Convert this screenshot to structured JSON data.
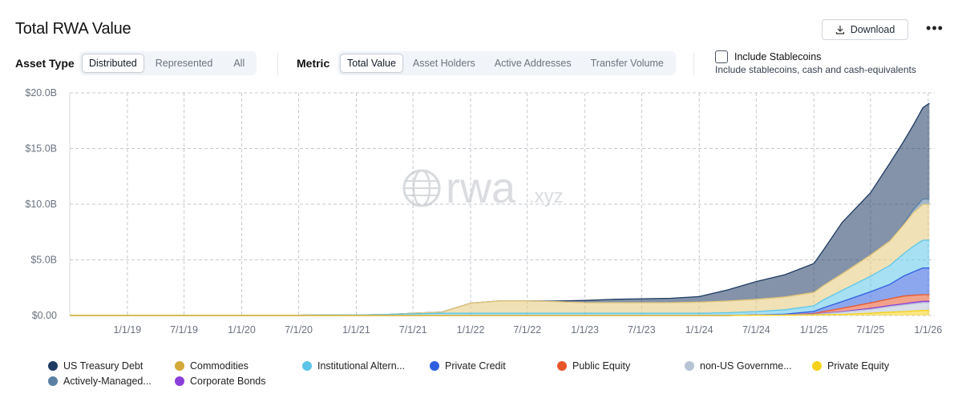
{
  "header": {
    "title": "Total RWA Value",
    "download_label": "Download",
    "more_label": "•••"
  },
  "controls": {
    "asset_type_label": "Asset Type",
    "asset_type_options": [
      "Distributed",
      "Represented",
      "All"
    ],
    "asset_type_selected": "Distributed",
    "metric_label": "Metric",
    "metric_options": [
      "Total Value",
      "Asset Holders",
      "Active Addresses",
      "Transfer Volume"
    ],
    "metric_selected": "Total Value",
    "stablecoins_label": "Include Stablecoins",
    "stablecoins_desc": "Include stablecoins, cash and cash-equivalents",
    "stablecoins_checked": false
  },
  "watermark": {
    "text": "rwa",
    "suffix": ".xyz"
  },
  "chart_data": {
    "type": "area",
    "stacked": true,
    "x_ticks": [
      "1/1/19",
      "7/1/19",
      "1/1/20",
      "7/1/20",
      "1/1/21",
      "7/1/21",
      "1/1/22",
      "7/1/22",
      "1/1/23",
      "7/1/23",
      "1/1/24",
      "7/1/24",
      "1/1/25",
      "7/1/25",
      "1/1/26"
    ],
    "y_ticks": [
      "$0.00",
      "$5.0B",
      "$10.0B",
      "$15.0B",
      "$20.0B"
    ],
    "ylim": [
      0,
      20
    ],
    "y_unit": "$B",
    "grid": true,
    "legend_position": "bottom",
    "x": [
      "2018-07-01",
      "2019-01-01",
      "2019-07-01",
      "2020-01-01",
      "2020-07-01",
      "2021-01-01",
      "2021-04-01",
      "2021-07-01",
      "2021-10-01",
      "2021-11-15",
      "2022-01-01",
      "2022-04-01",
      "2022-07-01",
      "2022-10-01",
      "2023-01-01",
      "2023-04-01",
      "2023-07-01",
      "2023-10-01",
      "2024-01-01",
      "2024-04-01",
      "2024-07-01",
      "2024-10-01",
      "2025-01-01",
      "2025-02-01",
      "2025-04-01",
      "2025-07-01",
      "2025-09-01",
      "2025-10-15",
      "2025-11-15",
      "2025-12-15",
      "2026-01-05"
    ],
    "series": [
      {
        "name": "Private Equity",
        "color": "#f5d21a",
        "values": [
          0,
          0,
          0,
          0,
          0,
          0,
          0,
          0,
          0,
          0,
          0,
          0,
          0,
          0,
          0,
          0,
          0,
          0,
          0,
          0,
          0.02,
          0.03,
          0.05,
          0.07,
          0.1,
          0.2,
          0.3,
          0.35,
          0.4,
          0.45,
          0.45
        ]
      },
      {
        "name": "non-US Government Debt",
        "color": "#b8c4d6",
        "values": [
          0,
          0,
          0,
          0,
          0,
          0,
          0,
          0,
          0,
          0,
          0,
          0,
          0,
          0,
          0,
          0,
          0,
          0,
          0,
          0,
          0.02,
          0.03,
          0.05,
          0.1,
          0.2,
          0.35,
          0.5,
          0.6,
          0.65,
          0.7,
          0.7
        ]
      },
      {
        "name": "Corporate Bonds",
        "color": "#8b3fd9",
        "values": [
          0,
          0,
          0,
          0,
          0,
          0,
          0,
          0,
          0,
          0,
          0,
          0,
          0,
          0,
          0,
          0,
          0,
          0,
          0,
          0,
          0,
          0,
          0.02,
          0.03,
          0.05,
          0.08,
          0.1,
          0.1,
          0.12,
          0.12,
          0.12
        ]
      },
      {
        "name": "Public Equity",
        "color": "#e8552a",
        "values": [
          0,
          0,
          0,
          0,
          0,
          0,
          0,
          0,
          0,
          0,
          0,
          0,
          0,
          0,
          0,
          0,
          0,
          0,
          0,
          0,
          0,
          0.01,
          0.05,
          0.15,
          0.3,
          0.5,
          0.6,
          0.7,
          0.65,
          0.6,
          0.6
        ]
      },
      {
        "name": "Private Credit",
        "color": "#2d5fe0",
        "values": [
          0,
          0,
          0,
          0,
          0,
          0,
          0,
          0,
          0,
          0,
          0,
          0,
          0,
          0,
          0,
          0,
          0,
          0,
          0,
          0,
          0.01,
          0.05,
          0.2,
          0.35,
          0.6,
          1.0,
          1.3,
          1.8,
          2.1,
          2.4,
          2.4
        ]
      },
      {
        "name": "Institutional Alternative Funds",
        "color": "#5cc6e8",
        "values": [
          0.02,
          0.02,
          0.02,
          0.02,
          0.03,
          0.05,
          0.08,
          0.15,
          0.2,
          0.2,
          0.2,
          0.2,
          0.2,
          0.2,
          0.2,
          0.2,
          0.2,
          0.2,
          0.2,
          0.25,
          0.3,
          0.4,
          0.5,
          0.7,
          1.0,
          1.4,
          1.7,
          2.0,
          2.3,
          2.5,
          2.5
        ]
      },
      {
        "name": "Commodities",
        "color": "#e6c87a",
        "values": [
          0,
          0,
          0,
          0,
          0,
          0,
          0,
          0.05,
          0.1,
          0.5,
          0.9,
          1.1,
          1.1,
          1.05,
          0.95,
          0.95,
          0.95,
          0.95,
          1.0,
          1.05,
          1.1,
          1.15,
          1.2,
          1.3,
          1.5,
          1.9,
          2.2,
          2.6,
          3.0,
          3.2,
          3.2
        ]
      },
      {
        "name": "Actively-Managed Strategies",
        "color": "#5a7fa3",
        "values": [
          0,
          0,
          0,
          0,
          0,
          0,
          0,
          0,
          0,
          0,
          0,
          0,
          0,
          0,
          0,
          0,
          0,
          0,
          0,
          0,
          0,
          0,
          0,
          0,
          0,
          0,
          0,
          0.1,
          0.3,
          0.5,
          0.5
        ]
      },
      {
        "name": "US Treasury Debt",
        "color": "#1f3b63",
        "values": [
          0,
          0,
          0,
          0,
          0,
          0,
          0,
          0,
          0,
          0,
          0,
          0,
          0,
          0.05,
          0.2,
          0.3,
          0.35,
          0.4,
          0.5,
          1.0,
          1.6,
          2.0,
          2.6,
          3.2,
          4.6,
          5.6,
          7.0,
          7.4,
          7.6,
          8.2,
          8.6
        ]
      }
    ]
  },
  "legend": [
    {
      "label": "US Treasury Debt",
      "color": "#1f3b63"
    },
    {
      "label": "Commodities",
      "color": "#d4a93a"
    },
    {
      "label": "Institutional Altern...",
      "color": "#5cc6e8"
    },
    {
      "label": "Private Credit",
      "color": "#2d5fe0"
    },
    {
      "label": "Public Equity",
      "color": "#e8552a"
    },
    {
      "label": "non-US Governme...",
      "color": "#b8c4d6"
    },
    {
      "label": "Private Equity",
      "color": "#f5d21a"
    },
    {
      "label": "Actively-Managed...",
      "color": "#5a7fa3"
    },
    {
      "label": "Corporate Bonds",
      "color": "#8b3fd9"
    }
  ]
}
